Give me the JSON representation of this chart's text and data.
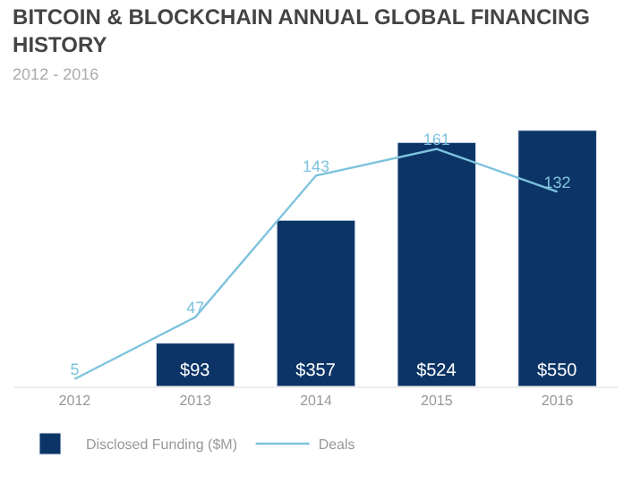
{
  "chart_data": {
    "type": "bar",
    "title": "BITCOIN & BLOCKCHAIN ANNUAL GLOBAL FINANCING HISTORY",
    "subtitle": "2012 - 2016",
    "categories": [
      "2012",
      "2013",
      "2014",
      "2015",
      "2016"
    ],
    "series": [
      {
        "name": "Disclosed Funding ($M)",
        "color": "#0c3466",
        "values": [
          null,
          93,
          357,
          524,
          550
        ],
        "value_labels": [
          null,
          "$93",
          "$357",
          "$524",
          "$550"
        ]
      },
      {
        "name": "Deals",
        "type": "line",
        "axis": "y2",
        "color": "#7ec3dd",
        "values": [
          5,
          47,
          143,
          161,
          132
        ],
        "value_labels": [
          "5",
          "47",
          "143",
          "161",
          "132"
        ]
      }
    ],
    "legend": "bottom left",
    "marker": "none"
  }
}
